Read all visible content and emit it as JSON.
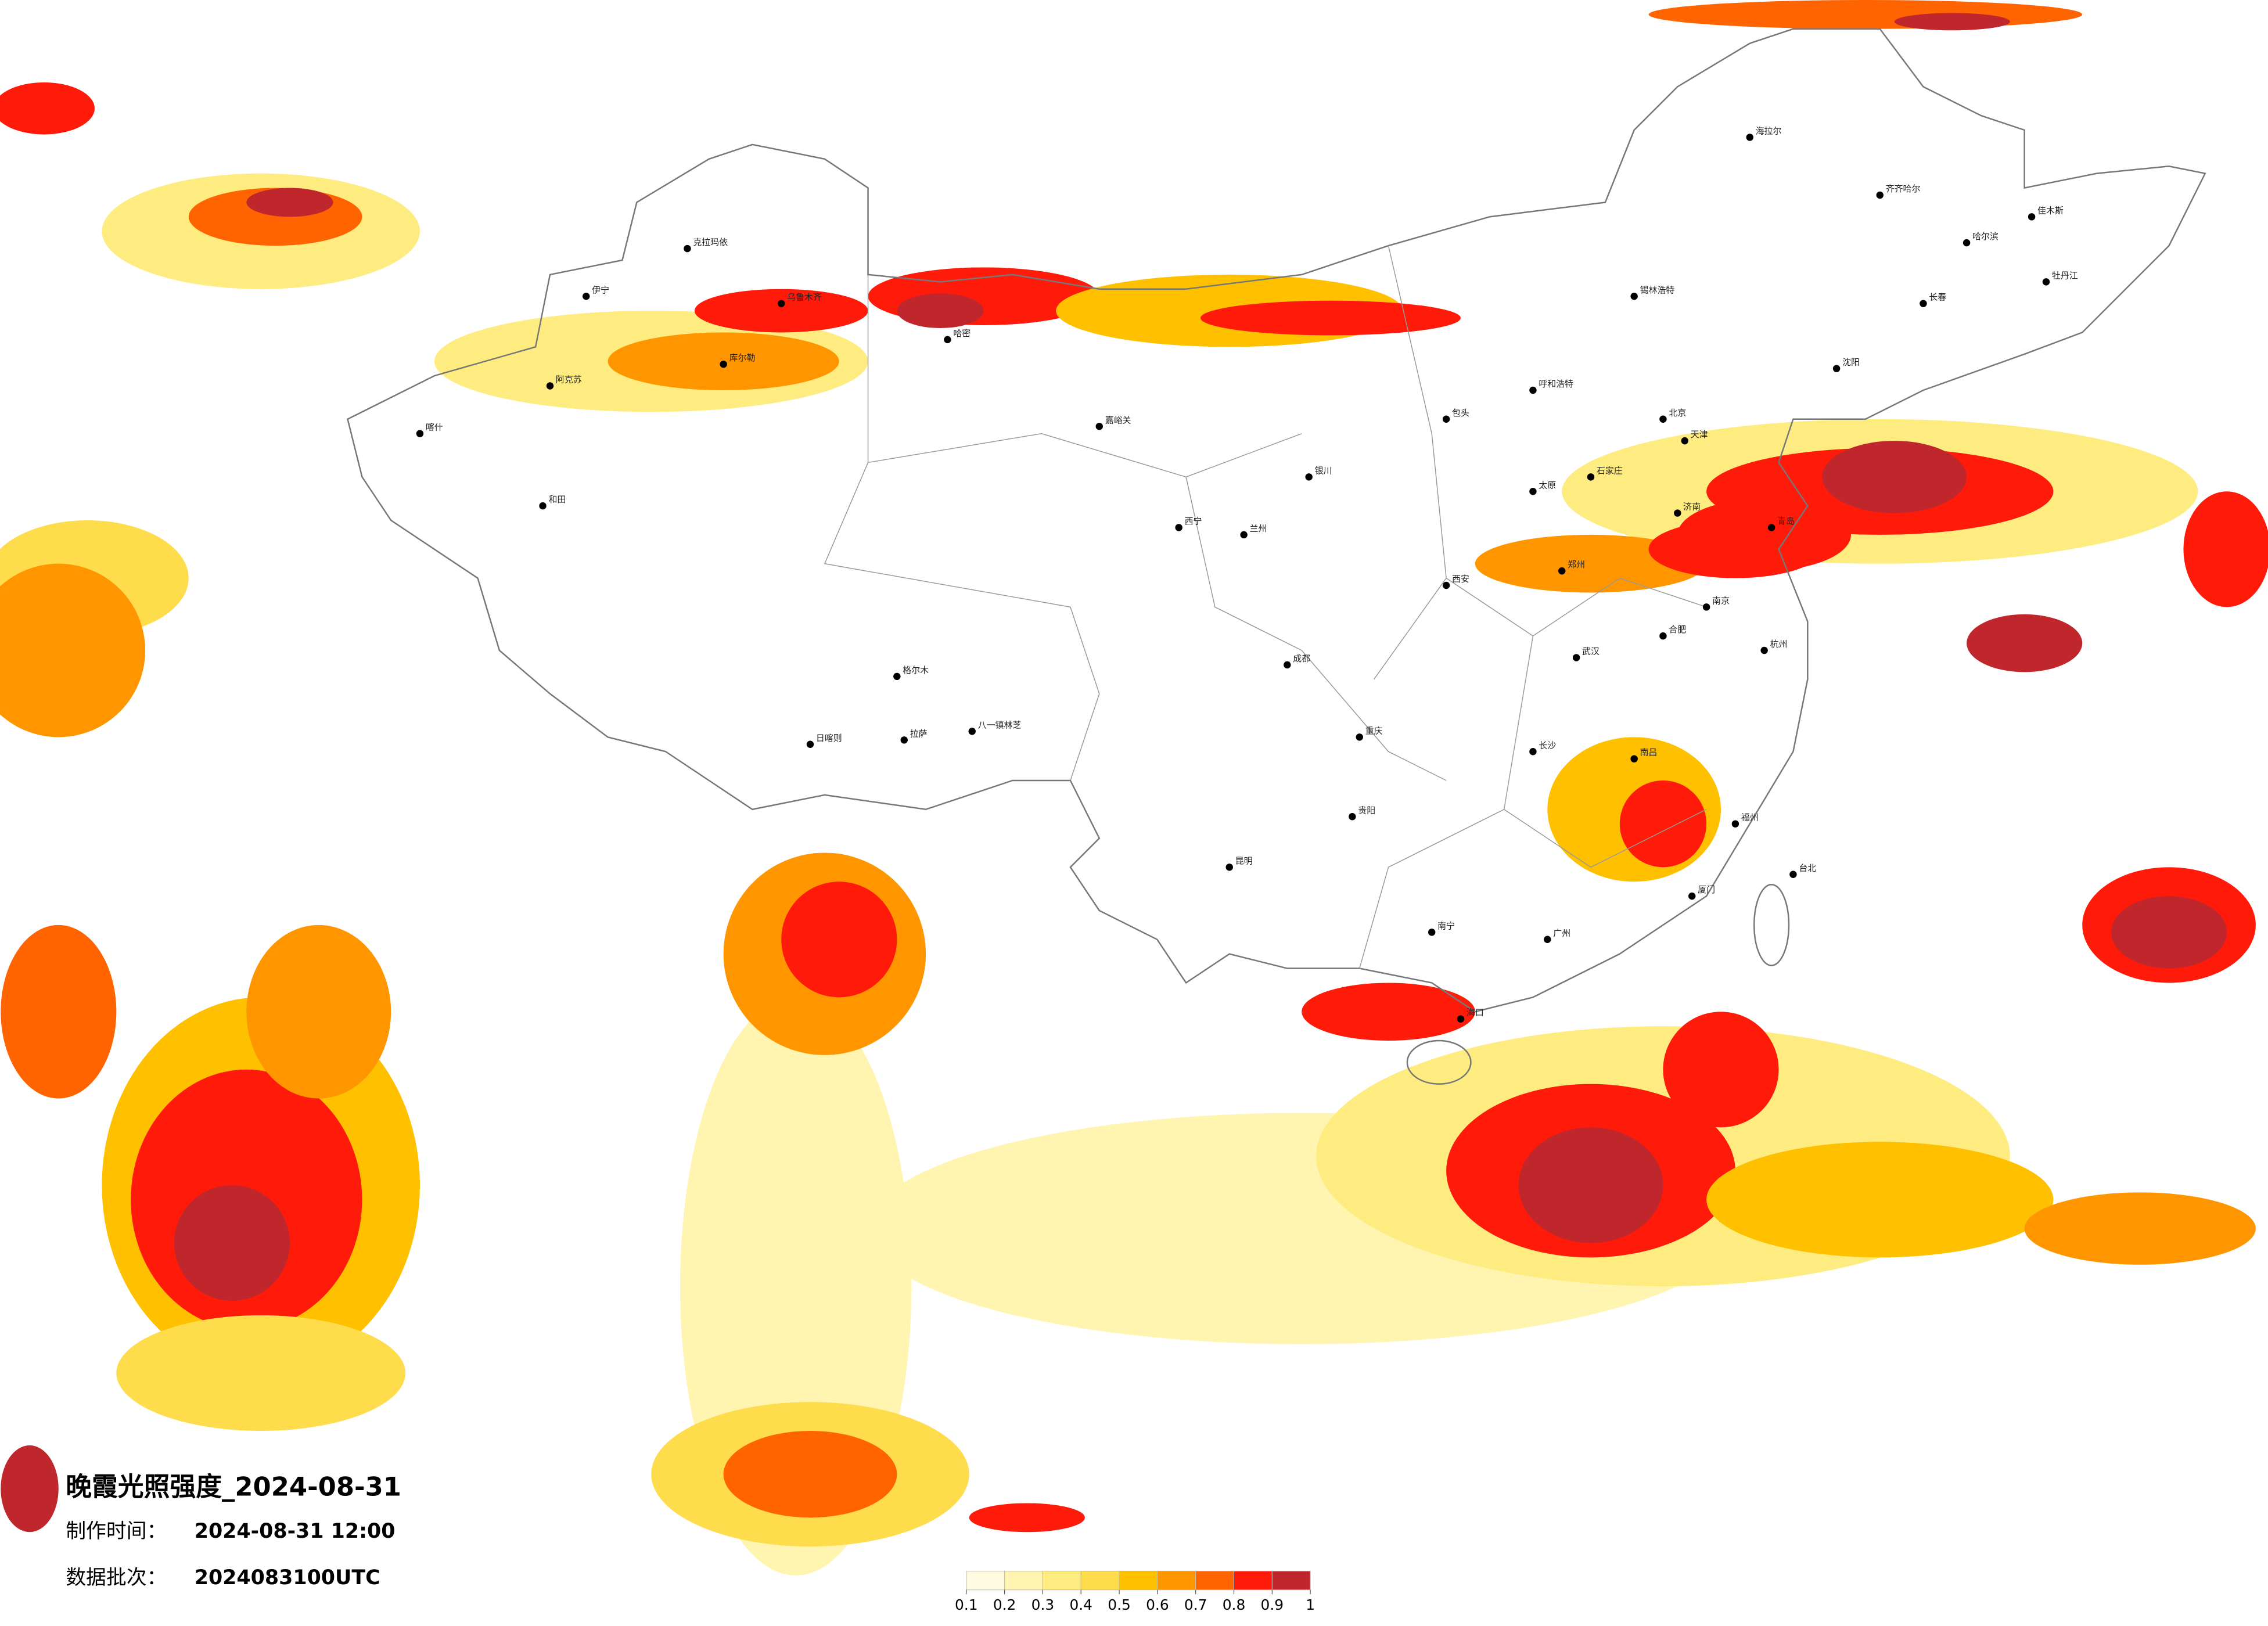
{
  "title": "晚霞光照强度_2024-08-31",
  "info": {
    "made_label": "制作时间：",
    "made_value": "2024-08-31 12:00",
    "batch_label": "数据批次：",
    "batch_value": "2024083100UTC"
  },
  "legend": {
    "ticks": [
      0.1,
      0.2,
      0.3,
      0.4,
      0.5,
      0.6,
      0.7,
      0.8,
      0.9,
      1
    ],
    "colors": [
      "#fffbe0",
      "#fff4b0",
      "#ffec80",
      "#ffdc4c",
      "#ffc000",
      "#ff9600",
      "#ff6400",
      "#ff1a0a",
      "#c0272d"
    ]
  },
  "cities": [
    "北京",
    "天津",
    "石家庄",
    "郑州",
    "武汉",
    "长沙",
    "广州",
    "重庆",
    "成都",
    "西安",
    "兰州",
    "西宁",
    "拉萨",
    "乌鲁木齐",
    "哈尔滨",
    "长春",
    "沈阳",
    "呼和浩特",
    "昆明",
    "贵阳",
    "南宁",
    "海口",
    "南昌",
    "福州",
    "杭州",
    "南京",
    "济南",
    "太原",
    "合肥",
    "台北",
    "喀什",
    "和田",
    "阿克苏",
    "克拉玛依",
    "伊宁",
    "哈密",
    "格尔木",
    "齐齐哈尔",
    "海拉尔",
    "佳木斯",
    "牡丹江",
    "青岛",
    "厦门",
    "日喀则",
    "八一镇林芝",
    "库尔勒",
    "嘉峪关",
    "锡林浩特",
    "银川",
    "包头"
  ]
}
